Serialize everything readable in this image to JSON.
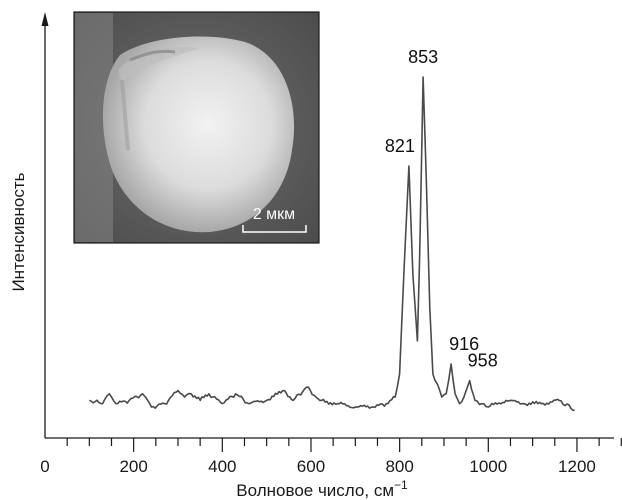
{
  "chart_data": {
    "type": "line",
    "xlabel": "Волновое число, см",
    "xlabel_sup": "−1",
    "ylabel": "Интенсивность",
    "xlim": [
      0,
      1300
    ],
    "x_ticks": [
      0,
      200,
      400,
      600,
      800,
      1000,
      1200
    ],
    "x_minor_step": 50,
    "y_axis": "no-ticks",
    "grid": false,
    "legend": "none",
    "line_color": "#4a4a4a",
    "peaks": [
      {
        "label": "821",
        "x": 821,
        "height": 0.73
      },
      {
        "label": "853",
        "x": 853,
        "height": 1.0
      },
      {
        "label": "916",
        "x": 916,
        "height": 0.13
      },
      {
        "label": "958",
        "x": 958,
        "height": 0.08
      }
    ],
    "series": [
      {
        "x": [
          100,
          130,
          145,
          160,
          190,
          220,
          240,
          270,
          300,
          315,
          330,
          350,
          370,
          400,
          430,
          460,
          500,
          540,
          560,
          590,
          620,
          660,
          700,
          740,
          770,
          790,
          800,
          810,
          821,
          830,
          840,
          845,
          853,
          860,
          868,
          875,
          885,
          895,
          905,
          916,
          925,
          935,
          945,
          958,
          970,
          985,
          1000,
          1040,
          1080,
          1120,
          1160,
          1195
        ],
        "y": [
          0.02,
          0.01,
          0.04,
          0.01,
          0.02,
          0.04,
          0.0,
          0.01,
          0.05,
          0.03,
          0.04,
          0.02,
          0.04,
          0.01,
          0.04,
          0.01,
          0.02,
          0.05,
          0.02,
          0.06,
          0.02,
          0.01,
          0.0,
          0.0,
          0.01,
          0.03,
          0.1,
          0.42,
          0.73,
          0.4,
          0.2,
          0.45,
          1.0,
          0.7,
          0.3,
          0.1,
          0.07,
          0.03,
          0.04,
          0.13,
          0.04,
          0.01,
          0.03,
          0.08,
          0.02,
          0.01,
          0.0,
          0.02,
          0.01,
          0.01,
          0.02,
          -0.01
        ]
      }
    ]
  },
  "inset": {
    "scale_bar_label": "2 мкм"
  }
}
